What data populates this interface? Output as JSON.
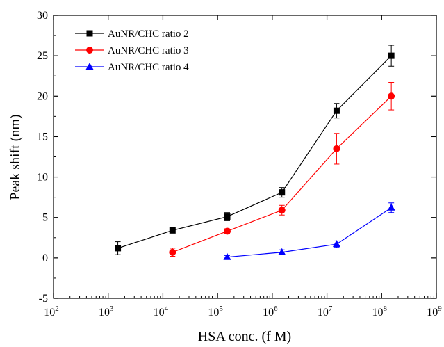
{
  "chart_data": {
    "type": "line",
    "xlabel": "HSA conc. (f M)",
    "ylabel": "Peak shift (nm)",
    "x_scale": "log",
    "xlim": [
      100,
      1000000000
    ],
    "ylim": [
      -5,
      30
    ],
    "x_tick_exponents": [
      "2",
      "3",
      "4",
      "5",
      "6",
      "7",
      "8",
      "9"
    ],
    "y_ticks": [
      -5,
      0,
      5,
      10,
      15,
      20,
      25,
      30
    ],
    "legend_position": "top-left",
    "grid": false,
    "series": [
      {
        "name": "AuNR/CHC ratio 2",
        "color": "#000000",
        "marker": "square",
        "x": [
          1500,
          15000,
          150000,
          1500000,
          15000000,
          150000000
        ],
        "y": [
          1.2,
          3.4,
          5.1,
          8.1,
          18.2,
          25.0
        ],
        "err": [
          0.8,
          0.3,
          0.5,
          0.6,
          0.9,
          1.3
        ]
      },
      {
        "name": "AuNR/CHC ratio 3",
        "color": "#ff0000",
        "marker": "circle",
        "x": [
          15000,
          150000,
          1500000,
          15000000,
          150000000
        ],
        "y": [
          0.7,
          3.3,
          5.9,
          13.5,
          20.0
        ],
        "err": [
          0.5,
          0.3,
          0.6,
          1.9,
          1.7
        ]
      },
      {
        "name": "AuNR/CHC ratio 4",
        "color": "#0000ff",
        "marker": "triangle",
        "x": [
          150000,
          1500000,
          15000000,
          150000000
        ],
        "y": [
          0.1,
          0.7,
          1.7,
          6.2
        ],
        "err": [
          0.2,
          0.3,
          0.4,
          0.6
        ]
      }
    ]
  }
}
